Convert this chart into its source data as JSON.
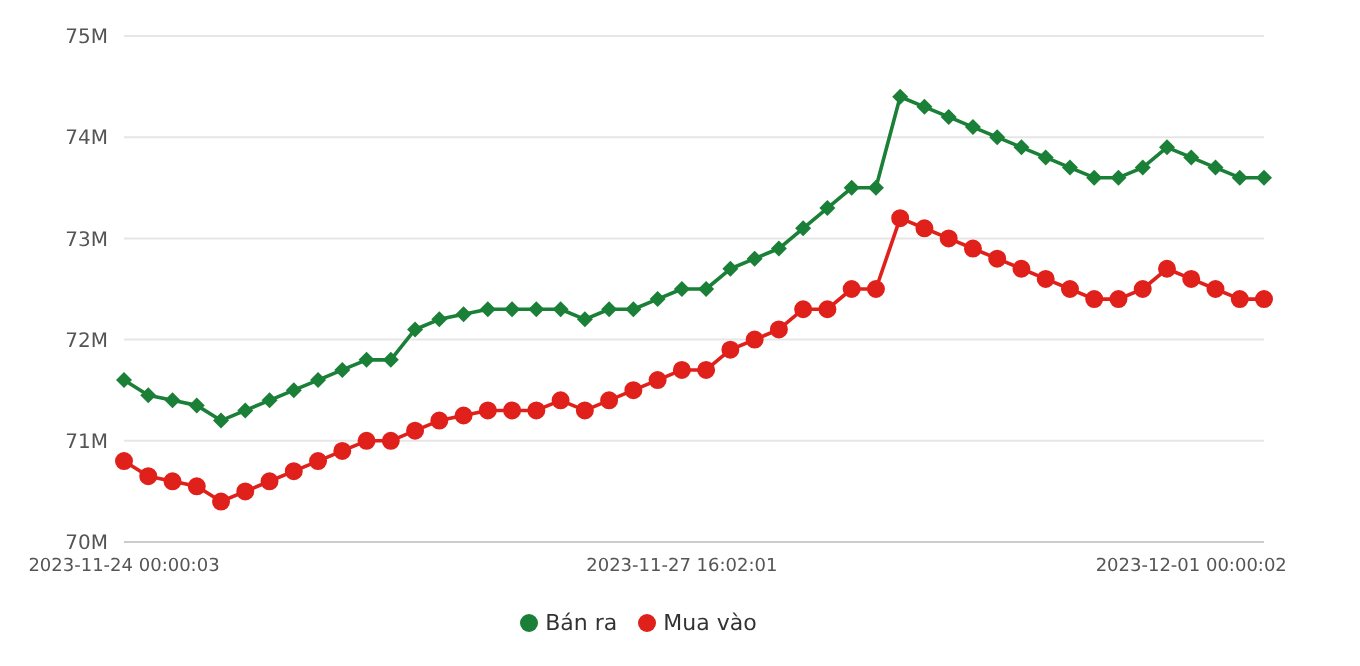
{
  "chart_data": {
    "type": "line",
    "categories": [
      "2023-11-24 00:00:03",
      null,
      null,
      null,
      null,
      null,
      null,
      null,
      null,
      null,
      null,
      null,
      null,
      null,
      null,
      null,
      null,
      null,
      null,
      null,
      null,
      null,
      null,
      "2023-11-27 16:02:01",
      null,
      null,
      null,
      null,
      null,
      null,
      null,
      null,
      null,
      null,
      null,
      null,
      null,
      null,
      null,
      null,
      null,
      null,
      null,
      null,
      "2023-12-01 00:00:02",
      null,
      null,
      null
    ],
    "series": [
      {
        "name": "Mua vào",
        "color": "#e0201b",
        "marker": "circle",
        "values": [
          70.8,
          70.65,
          70.6,
          70.55,
          70.4,
          70.5,
          70.6,
          70.7,
          70.8,
          70.9,
          71.0,
          71.0,
          71.1,
          71.2,
          71.25,
          71.3,
          71.3,
          71.3,
          71.4,
          71.3,
          71.4,
          71.5,
          71.6,
          71.7,
          71.7,
          71.9,
          72.0,
          72.1,
          72.3,
          72.3,
          72.5,
          72.5,
          73.2,
          73.1,
          73.0,
          72.9,
          72.8,
          72.7,
          72.6,
          72.5,
          72.4,
          72.4,
          72.5,
          72.7,
          72.6,
          72.5,
          72.4,
          72.4
        ]
      },
      {
        "name": "Bán ra",
        "color": "#1a7f37",
        "marker": "diamond",
        "values": [
          71.6,
          71.45,
          71.4,
          71.35,
          71.2,
          71.3,
          71.4,
          71.5,
          71.6,
          71.7,
          71.8,
          71.8,
          72.1,
          72.2,
          72.25,
          72.3,
          72.3,
          72.3,
          72.3,
          72.2,
          72.3,
          72.3,
          72.4,
          72.5,
          72.5,
          72.7,
          72.8,
          72.9,
          73.1,
          73.3,
          73.5,
          73.5,
          74.4,
          74.3,
          74.2,
          74.1,
          74.0,
          73.9,
          73.8,
          73.7,
          73.6,
          73.6,
          73.7,
          73.9,
          73.8,
          73.7,
          73.6,
          73.6
        ]
      }
    ],
    "ylim": [
      70,
      75
    ],
    "yticks": [
      {
        "value": 70,
        "label": "70M"
      },
      {
        "value": 71,
        "label": "71M"
      },
      {
        "value": 72,
        "label": "72M"
      },
      {
        "value": 73,
        "label": "73M"
      },
      {
        "value": 74,
        "label": "74M"
      },
      {
        "value": 75,
        "label": "75M"
      }
    ],
    "grid": "y",
    "legend": "bottom",
    "line_style": "solid"
  }
}
